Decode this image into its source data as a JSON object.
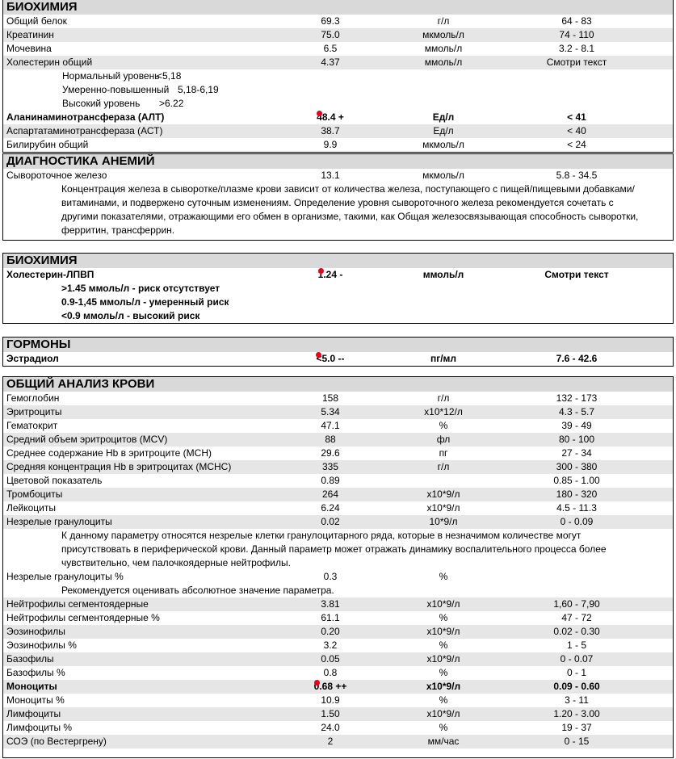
{
  "colors": {
    "flag": "#e8001c",
    "header_bg": "#d9d9d9",
    "alt_row": "#e6e6e6"
  },
  "sections": [
    {
      "title": "БИОХИМИЯ",
      "rows": [
        {
          "name": "Общий белок",
          "value": "69.3",
          "unit": "г/л",
          "range": "64 - 83"
        },
        {
          "name": "Креатинин",
          "value": "75.0",
          "unit": "мкмоль/л",
          "range": "74 - 110"
        },
        {
          "name": "Мочевина",
          "value": "6.5",
          "unit": "ммоль/л",
          "range": "3.2 - 8.1"
        },
        {
          "name": "Холестерин общий",
          "value": "4.37",
          "unit": "ммоль/л",
          "range": "Смотри текст"
        },
        {
          "thresholds": [
            [
              "Нормальный уровень",
              "<5,18"
            ],
            [
              "Умеренно-повышенный",
              "5,18-6,19"
            ],
            [
              "Высокий уровень",
              ">6.22"
            ]
          ]
        },
        {
          "name": "Аланинаминотрансфераза (АЛТ)",
          "value": "48.4 +",
          "unit": "Ед/л",
          "range": "< 41",
          "flag": true
        },
        {
          "name": "Аспартатаминотрансфераза (АСТ)",
          "value": "38.7",
          "unit": "Ед/л",
          "range": "< 40"
        },
        {
          "name": "Билирубин общий",
          "value": "9.9",
          "unit": "мкмоль/л",
          "range": "< 24"
        }
      ]
    },
    {
      "title": "ДИАГНОСТИКА АНЕМИЙ",
      "rows": [
        {
          "name": "Сывороточное железо",
          "value": "13.1",
          "unit": "мкмоль/л",
          "range": "5.8 - 34.5"
        },
        {
          "note": "Концентрация железа в сыворотке/плазме крови зависит от количества железа, поступающего с пищей/пищевыми добавками/витаминами, и подвержено суточным изменениям. Определение уровня сывороточного железа рекомендуется сочетать с другими показателями, отражающими его обмен в организме, такими, как Общая железосвязывающая способность сыворотки, ферритин, трансферрин."
        }
      ]
    },
    {
      "title": "БИОХИМИЯ",
      "rows": [
        {
          "name": "Холестерин-ЛПВП",
          "value": "1.24 -",
          "unit": "ммоль/л",
          "range": "Смотри текст",
          "flag": true
        },
        {
          "note_bold": ">1.45 ммоль/л - риск отсутствует"
        },
        {
          "note_bold": "0.9-1,45 ммоль/л - умеренный риск"
        },
        {
          "note_bold": "<0.9 ммоль/л - высокий риск"
        }
      ]
    },
    {
      "title": "ГОРМОНЫ",
      "rows": [
        {
          "name": "Эстрадиол",
          "value": "<5.0 --",
          "unit": "пг/мл",
          "range": "7.6 - 42.6",
          "flag": true
        }
      ]
    },
    {
      "title": "ОБЩИЙ АНАЛИЗ КРОВИ",
      "rows": [
        {
          "name": "Гемоглобин",
          "value": "158",
          "unit": "г/л",
          "range": "132 - 173"
        },
        {
          "name": "Эритроциты",
          "value": "5.34",
          "unit": "x10*12/л",
          "range": "4.3 - 5.7"
        },
        {
          "name": "Гематокрит",
          "value": "47.1",
          "unit": "%",
          "range": "39 - 49"
        },
        {
          "name": "Средний объем эритроцитов (MCV)",
          "value": "88",
          "unit": "фл",
          "range": "80 - 100"
        },
        {
          "name": "Среднее содержание Hb в эритроците (MCH)",
          "value": "29.6",
          "unit": "пг",
          "range": "27 - 34"
        },
        {
          "name": "Средняя концентрация Hb в эритроцитах (MCHC)",
          "value": "335",
          "unit": "г/л",
          "range": "300 - 380"
        },
        {
          "name": "Цветовой показатель",
          "value": "0.89",
          "unit": "",
          "range": "0.85 - 1.00"
        },
        {
          "name": "Тромбоциты",
          "value": "264",
          "unit": "x10*9/л",
          "range": "180 - 320"
        },
        {
          "name": "Лейкоциты",
          "value": "6.24",
          "unit": "x10*9/л",
          "range": "4.5 - 11.3"
        },
        {
          "name": " Незрелые гранулоциты",
          "value": "0.02",
          "unit": "10*9/л",
          "range": "0 - 0.09"
        },
        {
          "note": "К данному параметру относятся незрелые клетки гранулоцитарного ряда, которые  в незначимом количестве могут присутствовать в периферической крови. Данный параметр может отражать динамику воспалительного процесса более чувствительно, чем палочкоядерные нейтрофилы."
        },
        {
          "name": " Незрелые гранулоциты %",
          "value": "0.3",
          "unit": "%",
          "range": ""
        },
        {
          "note": "Рекомендуется оценивать абсолютное значение параметра."
        },
        {
          "name": "Нейтрофилы сегментоядерные",
          "value": "3.81",
          "unit": "x10*9/л",
          "range": "1,60 - 7,90"
        },
        {
          "name": "Нейтрофилы сегментоядерные %",
          "value": "61.1",
          "unit": "%",
          "range": "47 - 72"
        },
        {
          "name": "Эозинофилы",
          "value": "0.20",
          "unit": "x10*9/л",
          "range": "0.02 - 0.30"
        },
        {
          "name": "Эозинофилы %",
          "value": "3.2",
          "unit": "%",
          "range": "1 - 5"
        },
        {
          "name": "Базофилы",
          "value": "0.05",
          "unit": "x10*9/л",
          "range": "0 - 0.07"
        },
        {
          "name": "Базофилы %",
          "value": "0.8",
          "unit": "%",
          "range": "0 - 1"
        },
        {
          "name": "Моноциты",
          "value": "0.68 ++",
          "unit": "x10*9/л",
          "range": "0.09 - 0.60",
          "flag": true
        },
        {
          "name": "Моноциты %",
          "value": "10.9",
          "unit": "%",
          "range": "3 - 11"
        },
        {
          "name": "Лимфоциты",
          "value": "1.50",
          "unit": "x10*9/л",
          "range": "1.20 - 3.00"
        },
        {
          "name": "Лимфоциты %",
          "value": "24.0",
          "unit": "%",
          "range": "19 - 37"
        },
        {
          "name": "СОЭ (по Вестергрену)",
          "value": "2",
          "unit": "мм/час",
          "range": "0 - 15"
        }
      ]
    }
  ]
}
